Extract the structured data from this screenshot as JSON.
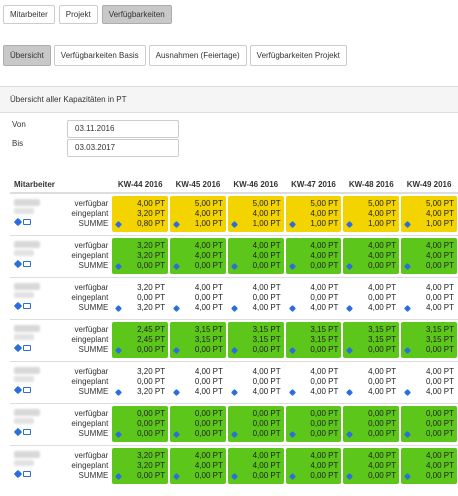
{
  "nav": {
    "tabs": [
      {
        "label": "Mitarbeiter",
        "active": false
      },
      {
        "label": "Projekt",
        "active": false
      },
      {
        "label": "Verfügbarkeiten",
        "active": true
      }
    ]
  },
  "subnav": {
    "tabs": [
      {
        "label": "Übersicht",
        "active": true
      },
      {
        "label": "Verfügbarkeiten Basis",
        "active": false
      },
      {
        "label": "Ausnahmen (Feiertage)",
        "active": false
      },
      {
        "label": "Verfügbarkeiten Projekt",
        "active": false
      }
    ]
  },
  "panel": {
    "title": "Übersicht aller Kapazitäten in PT",
    "from_label": "Von",
    "from_value": "03.11.2016",
    "to_label": "Bis",
    "to_value": "03.03.2017"
  },
  "table": {
    "header": "Mitarbeiter",
    "row_labels": [
      "verfügbar",
      "eingeplant",
      "SUMME"
    ],
    "weeks": [
      "KW-44 2016",
      "KW-45 2016",
      "KW-46 2016",
      "KW-47 2016",
      "KW-48 2016",
      "KW-49 2016"
    ],
    "people": [
      {
        "color": "yellow",
        "cells": [
          [
            "4,00 PT",
            "3,20 PT",
            "0,80 PT"
          ],
          [
            "5,00 PT",
            "4,00 PT",
            "1,00 PT"
          ],
          [
            "5,00 PT",
            "4,00 PT",
            "1,00 PT"
          ],
          [
            "5,00 PT",
            "4,00 PT",
            "1,00 PT"
          ],
          [
            "5,00 PT",
            "4,00 PT",
            "1,00 PT"
          ],
          [
            "5,00 PT",
            "4,00 PT",
            "1,00 PT"
          ]
        ]
      },
      {
        "color": "green",
        "cells": [
          [
            "3,20 PT",
            "3,20 PT",
            "0,00 PT"
          ],
          [
            "4,00 PT",
            "4,00 PT",
            "0,00 PT"
          ],
          [
            "4,00 PT",
            "4,00 PT",
            "0,00 PT"
          ],
          [
            "4,00 PT",
            "4,00 PT",
            "0,00 PT"
          ],
          [
            "4,00 PT",
            "4,00 PT",
            "0,00 PT"
          ],
          [
            "4,00 PT",
            "4,00 PT",
            "0,00 PT"
          ]
        ]
      },
      {
        "color": "white",
        "cells": [
          [
            "3,20 PT",
            "0,00 PT",
            "3,20 PT"
          ],
          [
            "4,00 PT",
            "0,00 PT",
            "4,00 PT"
          ],
          [
            "4,00 PT",
            "0,00 PT",
            "4,00 PT"
          ],
          [
            "4,00 PT",
            "0,00 PT",
            "4,00 PT"
          ],
          [
            "4,00 PT",
            "0,00 PT",
            "4,00 PT"
          ],
          [
            "4,00 PT",
            "0,00 PT",
            "4,00 PT"
          ]
        ]
      },
      {
        "color": "green",
        "cells": [
          [
            "2,45 PT",
            "2,45 PT",
            "0,00 PT"
          ],
          [
            "3,15 PT",
            "3,15 PT",
            "0,00 PT"
          ],
          [
            "3,15 PT",
            "3,15 PT",
            "0,00 PT"
          ],
          [
            "3,15 PT",
            "3,15 PT",
            "0,00 PT"
          ],
          [
            "3,15 PT",
            "3,15 PT",
            "0,00 PT"
          ],
          [
            "3,15 PT",
            "3,15 PT",
            "0,00 PT"
          ]
        ]
      },
      {
        "color": "white",
        "cells": [
          [
            "3,20 PT",
            "0,00 PT",
            "3,20 PT"
          ],
          [
            "4,00 PT",
            "0,00 PT",
            "4,00 PT"
          ],
          [
            "4,00 PT",
            "0,00 PT",
            "4,00 PT"
          ],
          [
            "4,00 PT",
            "0,00 PT",
            "4,00 PT"
          ],
          [
            "4,00 PT",
            "0,00 PT",
            "4,00 PT"
          ],
          [
            "4,00 PT",
            "0,00 PT",
            "4,00 PT"
          ]
        ]
      },
      {
        "color": "green",
        "cells": [
          [
            "0,00 PT",
            "0,00 PT",
            "0,00 PT"
          ],
          [
            "0,00 PT",
            "0,00 PT",
            "0,00 PT"
          ],
          [
            "0,00 PT",
            "0,00 PT",
            "0,00 PT"
          ],
          [
            "0,00 PT",
            "0,00 PT",
            "0,00 PT"
          ],
          [
            "0,00 PT",
            "0,00 PT",
            "0,00 PT"
          ],
          [
            "0,00 PT",
            "0,00 PT",
            "0,00 PT"
          ]
        ]
      },
      {
        "color": "green",
        "cells": [
          [
            "3,20 PT",
            "3,20 PT",
            "0,00 PT"
          ],
          [
            "4,00 PT",
            "4,00 PT",
            "0,00 PT"
          ],
          [
            "4,00 PT",
            "4,00 PT",
            "0,00 PT"
          ],
          [
            "4,00 PT",
            "4,00 PT",
            "0,00 PT"
          ],
          [
            "4,00 PT",
            "4,00 PT",
            "0,00 PT"
          ],
          [
            "4,00 PT",
            "4,00 PT",
            "0,00 PT"
          ]
        ]
      }
    ]
  },
  "colors": {
    "yellow": "#f3d300",
    "green": "#5cc71a",
    "active_button": "#c8c8c8",
    "icon": "#2a6fdb"
  }
}
